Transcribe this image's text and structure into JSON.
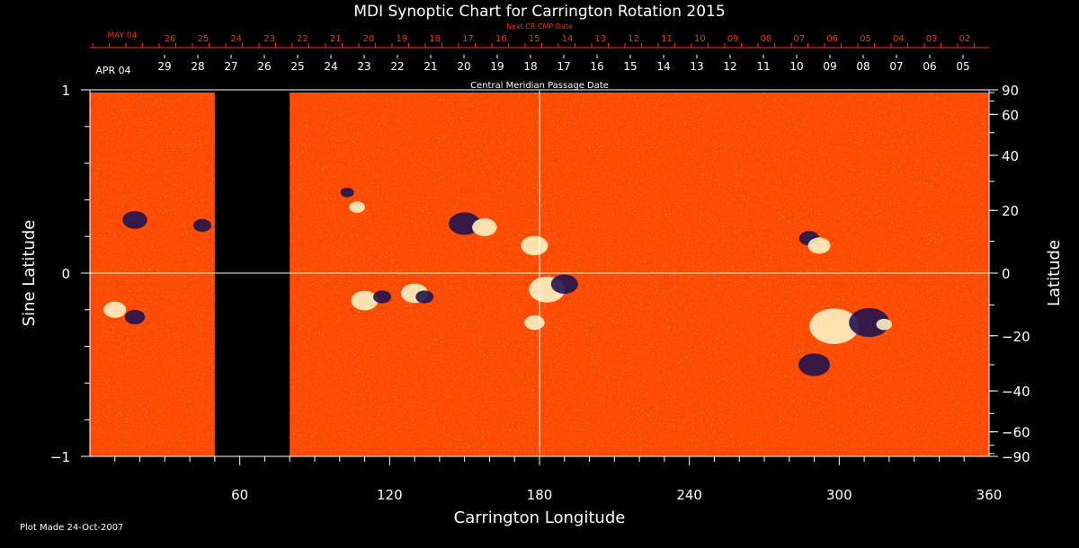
{
  "chart_data": {
    "type": "heatmap",
    "title": "MDI Synoptic Chart for Carrington Rotation 2015",
    "xlabel": "Carrington Longitude",
    "ylabel_left": "Sine Latitude",
    "ylabel_right": "Latitude",
    "xlim": [
      0,
      360
    ],
    "ylim": [
      -1,
      1
    ],
    "x_ticks": [
      "60",
      "120",
      "180",
      "240",
      "300",
      "360"
    ],
    "x_tick_values": [
      60,
      120,
      180,
      240,
      300,
      360
    ],
    "y_left_ticks": [
      "1",
      "0",
      "−1"
    ],
    "y_left_tick_values": [
      1,
      0,
      -1
    ],
    "y_right_ticks": [
      "90",
      "60",
      "40",
      "20",
      "0",
      "−20",
      "−40",
      "−60",
      "−90"
    ],
    "y_right_tick_values": [
      90,
      60,
      40,
      20,
      0,
      -20,
      -40,
      -60,
      -90
    ],
    "grid_lines": {
      "x": [
        180
      ],
      "y": [
        0
      ]
    },
    "cmp_label": "Central Meridian Passage Date",
    "cmp_month_label": "APR 04",
    "cmp_dates": [
      "29",
      "28",
      "27",
      "26",
      "25",
      "24",
      "23",
      "22",
      "21",
      "20",
      "19",
      "18",
      "17",
      "16",
      "15",
      "14",
      "13",
      "12",
      "11",
      "10",
      "09",
      "08",
      "07",
      "06",
      "05"
    ],
    "next_cr_label": "Next CR CMP Date",
    "next_month_label": "MAY 04",
    "next_dates": [
      "26",
      "25",
      "24",
      "23",
      "22",
      "21",
      "20",
      "19",
      "18",
      "17",
      "16",
      "15",
      "14",
      "13",
      "12",
      "11",
      "10",
      "09",
      "08",
      "07",
      "06",
      "05",
      "04",
      "03",
      "02"
    ],
    "data_gap_longitude": [
      50,
      80
    ],
    "background_color": "#ff4a00",
    "gap_color": "#000000",
    "positive_polarity_color": "#fff6c8",
    "negative_polarity_color": "#1a1250",
    "regions": [
      {
        "lon": 103,
        "lat": 0.44,
        "size": 6,
        "polarity": "negative"
      },
      {
        "lon": 107,
        "lat": 0.36,
        "size": 7,
        "polarity": "positive"
      },
      {
        "lon": 150,
        "lat": 0.27,
        "size": 14,
        "polarity": "negative"
      },
      {
        "lon": 158,
        "lat": 0.25,
        "size": 11,
        "polarity": "positive"
      },
      {
        "lon": 178,
        "lat": 0.15,
        "size": 12,
        "polarity": "positive"
      },
      {
        "lon": 110,
        "lat": -0.15,
        "size": 12,
        "polarity": "positive"
      },
      {
        "lon": 117,
        "lat": -0.13,
        "size": 8,
        "polarity": "negative"
      },
      {
        "lon": 130,
        "lat": -0.11,
        "size": 12,
        "polarity": "positive"
      },
      {
        "lon": 134,
        "lat": -0.13,
        "size": 8,
        "polarity": "negative"
      },
      {
        "lon": 183,
        "lat": -0.09,
        "size": 16,
        "polarity": "positive"
      },
      {
        "lon": 190,
        "lat": -0.06,
        "size": 12,
        "polarity": "negative"
      },
      {
        "lon": 178,
        "lat": -0.27,
        "size": 9,
        "polarity": "positive"
      },
      {
        "lon": 288,
        "lat": 0.19,
        "size": 9,
        "polarity": "negative"
      },
      {
        "lon": 292,
        "lat": 0.15,
        "size": 10,
        "polarity": "positive"
      },
      {
        "lon": 298,
        "lat": -0.29,
        "size": 22,
        "polarity": "positive"
      },
      {
        "lon": 312,
        "lat": -0.27,
        "size": 18,
        "polarity": "negative"
      },
      {
        "lon": 318,
        "lat": -0.28,
        "size": 7,
        "polarity": "positive"
      },
      {
        "lon": 290,
        "lat": -0.5,
        "size": 14,
        "polarity": "negative"
      },
      {
        "lon": 18,
        "lat": 0.29,
        "size": 11,
        "polarity": "negative"
      },
      {
        "lon": 45,
        "lat": 0.26,
        "size": 8,
        "polarity": "negative"
      },
      {
        "lon": 10,
        "lat": -0.2,
        "size": 10,
        "polarity": "positive"
      },
      {
        "lon": 18,
        "lat": -0.24,
        "size": 9,
        "polarity": "negative"
      }
    ]
  },
  "footer": {
    "plot_made": "Plot Made 24-Oct-2007"
  }
}
